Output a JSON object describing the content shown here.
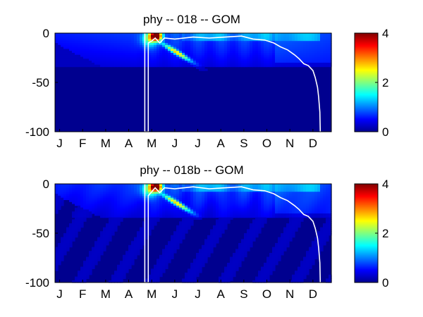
{
  "chart_data": [
    {
      "type": "heatmap",
      "title": "phy -- 018 -- GOM",
      "xlabel": "",
      "ylabel": "",
      "x_ticks": [
        "J",
        "F",
        "M",
        "A",
        "M",
        "J",
        "J",
        "A",
        "S",
        "O",
        "N",
        "D"
      ],
      "y_ticks": [
        "0",
        "-50",
        "-100"
      ],
      "ylim": [
        -100,
        0
      ],
      "colorbar": {
        "ticks": [
          "0",
          "2",
          "4"
        ],
        "range": [
          0,
          4
        ],
        "colormap": "jet"
      },
      "mixed_layer_line": {
        "color": "#ffffff",
        "points": [
          [
            3.9,
            0
          ],
          [
            3.9,
            -100
          ],
          [
            4.05,
            -100
          ],
          [
            4.05,
            -10
          ],
          [
            4.2,
            -8
          ],
          [
            4.35,
            -5
          ],
          [
            4.55,
            -10
          ],
          [
            4.75,
            -5
          ],
          [
            5.2,
            -6
          ],
          [
            6.0,
            -4
          ],
          [
            6.7,
            -5
          ],
          [
            7.4,
            -4
          ],
          [
            8.1,
            -3
          ],
          [
            8.6,
            -6
          ],
          [
            9.1,
            -7
          ],
          [
            9.5,
            -10
          ],
          [
            9.8,
            -14
          ],
          [
            10.1,
            -17
          ],
          [
            10.4,
            -22
          ],
          [
            10.6,
            -26
          ],
          [
            10.8,
            -31
          ],
          [
            11.0,
            -33
          ],
          [
            11.2,
            -38
          ],
          [
            11.3,
            -45
          ],
          [
            11.4,
            -55
          ],
          [
            11.45,
            -65
          ],
          [
            11.5,
            -80
          ],
          [
            11.52,
            -100
          ]
        ]
      }
    },
    {
      "type": "heatmap",
      "title": "phy -- 018b -- GOM",
      "xlabel": "",
      "ylabel": "",
      "x_ticks": [
        "J",
        "F",
        "M",
        "A",
        "M",
        "J",
        "J",
        "A",
        "S",
        "O",
        "N",
        "D"
      ],
      "y_ticks": [
        "0",
        "-50",
        "-100"
      ],
      "ylim": [
        -100,
        0
      ],
      "colorbar": {
        "ticks": [
          "0",
          "2",
          "4"
        ],
        "range": [
          0,
          4
        ],
        "colormap": "jet"
      },
      "mixed_layer_line": {
        "color": "#ffffff",
        "points": [
          [
            3.9,
            0
          ],
          [
            3.9,
            -100
          ],
          [
            4.05,
            -100
          ],
          [
            4.05,
            -12
          ],
          [
            4.2,
            -8
          ],
          [
            4.35,
            -4
          ],
          [
            4.55,
            -9
          ],
          [
            4.75,
            -4
          ],
          [
            5.2,
            -5
          ],
          [
            6.0,
            -3
          ],
          [
            6.7,
            -5
          ],
          [
            7.4,
            -4
          ],
          [
            8.1,
            -3
          ],
          [
            8.6,
            -6
          ],
          [
            9.1,
            -7
          ],
          [
            9.5,
            -10
          ],
          [
            9.8,
            -14
          ],
          [
            10.1,
            -17
          ],
          [
            10.4,
            -22
          ],
          [
            10.6,
            -26
          ],
          [
            10.8,
            -31
          ],
          [
            11.0,
            -33
          ],
          [
            11.2,
            -38
          ],
          [
            11.3,
            -45
          ],
          [
            11.4,
            -55
          ],
          [
            11.45,
            -65
          ],
          [
            11.5,
            -80
          ],
          [
            11.52,
            -100
          ]
        ]
      }
    }
  ]
}
